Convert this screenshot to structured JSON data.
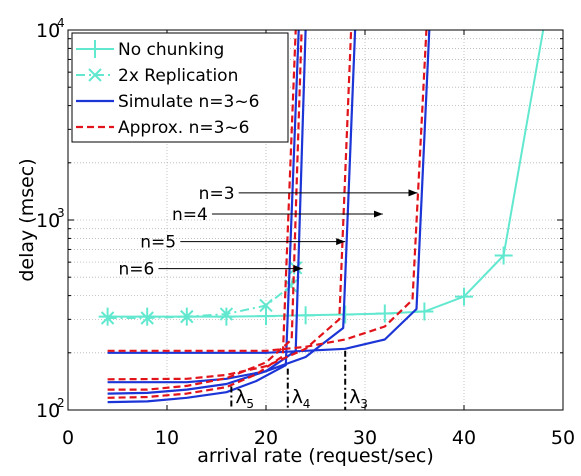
{
  "chart_data": {
    "type": "line",
    "title": "",
    "xlabel": "arrival rate (request/sec)",
    "ylabel": "delay (msec)",
    "xlim": [
      0,
      50
    ],
    "ylim": [
      100,
      10000
    ],
    "y_scale": "log",
    "x_ticks": [
      "0",
      "10",
      "20",
      "30",
      "40",
      "50"
    ],
    "y_ticks": [
      {
        "base": "10",
        "exp": "2",
        "value": 100
      },
      {
        "base": "10",
        "exp": "3",
        "value": 1000
      },
      {
        "base": "10",
        "exp": "4",
        "value": 10000
      }
    ],
    "grid": true,
    "legend_position": "top-left",
    "colors": {
      "no_chunking": "#62e8cf",
      "replication": "#62e8cf",
      "simulate": "#1c35d6",
      "approx": "#e2141b",
      "annotation": "#000000"
    },
    "series": [
      {
        "name": "No chunking",
        "style": "solid-plus",
        "x": [
          4,
          8,
          12,
          16,
          20,
          24,
          28,
          32,
          36,
          40,
          44,
          48
        ],
        "y": [
          310,
          310,
          310,
          310,
          312,
          315,
          318,
          322,
          330,
          395,
          650,
          10000
        ]
      },
      {
        "name": "2x Replication",
        "style": "dashdot-x",
        "x": [
          4,
          8,
          12,
          16,
          20,
          22.5,
          23
        ],
        "y": [
          305,
          305,
          310,
          320,
          355,
          450,
          560
        ]
      },
      {
        "name": "Simulate n=3~6",
        "style": "solid",
        "groups": [
          {
            "n": 3,
            "x": [
              4,
              20,
              24,
              28,
              32,
              35.2,
              36.5
            ],
            "y": [
              200,
              200,
              205,
              210,
              235,
              340,
              10000
            ]
          },
          {
            "n": 4,
            "x": [
              4,
              12,
              16,
              20,
              24,
              27.8,
              29
            ],
            "y": [
              140,
              140,
              146,
              160,
              190,
              270,
              10000
            ]
          },
          {
            "n": 5,
            "x": [
              4,
              8,
              12,
              16,
              20,
              23,
              24
            ],
            "y": [
              122,
              123,
              128,
              137,
              160,
              205,
              10000
            ]
          },
          {
            "n": 6,
            "x": [
              4,
              8,
              12,
              16,
              19,
              22,
              23.3
            ],
            "y": [
              110,
              111,
              116,
              124,
              142,
              172,
              10000
            ]
          }
        ]
      },
      {
        "name": "Approx. n=3~6",
        "style": "dashed",
        "groups": [
          {
            "n": 3,
            "x": [
              4,
              20,
              24,
              28,
              32,
              34.8,
              36.2
            ],
            "y": [
              205,
              205,
              215,
              235,
              275,
              380,
              10000
            ]
          },
          {
            "n": 4,
            "x": [
              4,
              12,
              16,
              20,
              24,
              27.4,
              28.6
            ],
            "y": [
              145,
              146,
              153,
              170,
              210,
              300,
              10000
            ]
          },
          {
            "n": 5,
            "x": [
              4,
              8,
              12,
              16,
              20,
              22.6,
              23.6
            ],
            "y": [
              128,
              128,
              134,
              147,
              178,
              235,
              10000
            ]
          },
          {
            "n": 6,
            "x": [
              4,
              8,
              12,
              16,
              19,
              21.7,
              23
            ],
            "y": [
              116,
              117,
              122,
              132,
              154,
              192,
              10000
            ]
          }
        ]
      }
    ],
    "annotations": [
      {
        "text": "n=3",
        "label_x": 13.2,
        "label_y": 1390,
        "arrow_to_x": 35.3,
        "arrow_to_y": 1390
      },
      {
        "text": "n=4",
        "label_x": 10.5,
        "label_y": 1075,
        "arrow_to_x": 31.8,
        "arrow_to_y": 1075
      },
      {
        "text": "n=5",
        "label_x": 7.3,
        "label_y": 770,
        "arrow_to_x": 28.0,
        "arrow_to_y": 770
      },
      {
        "text": "n=6",
        "label_x": 5.1,
        "label_y": 555,
        "arrow_to_x": 23.7,
        "arrow_to_y": 555
      }
    ],
    "lambda_markers": [
      {
        "symbol": "λ",
        "sub": "5",
        "x": 16.5,
        "y_top": 133
      },
      {
        "symbol": "λ",
        "sub": "4",
        "x": 22.2,
        "y_top": 165
      },
      {
        "symbol": "λ",
        "sub": "3",
        "x": 28.0,
        "y_top": 205
      }
    ]
  }
}
